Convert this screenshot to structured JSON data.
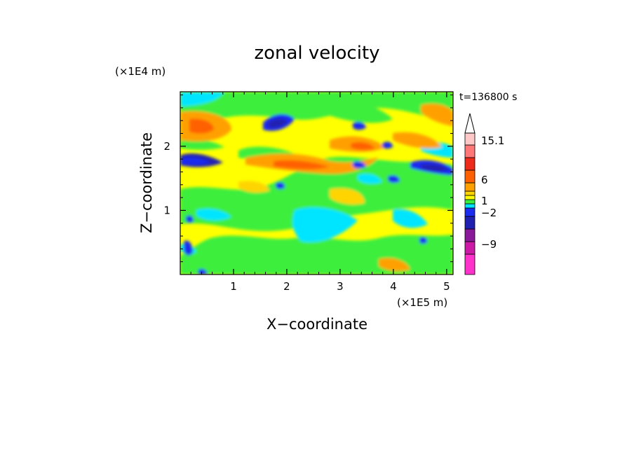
{
  "chart_data": {
    "type": "heatmap",
    "title": "zonal velocity",
    "xlabel": "X−coordinate",
    "ylabel": "Z−coordinate",
    "x_unit": "(×1E5 m)",
    "y_unit": "(×1E4 m)",
    "time_label": "t=136800 s",
    "xlim": [
      0,
      5.12
    ],
    "ylim": [
      0,
      2.85
    ],
    "x_ticks": [
      1,
      2,
      3,
      4,
      5
    ],
    "y_ticks": [
      1,
      2
    ],
    "colorbar": {
      "levels": [
        {
          "color": "#ff33cc"
        },
        {
          "color": "#cc1aa6"
        },
        {
          "color": "#8a1a9a"
        },
        {
          "color": "#2020b0"
        },
        {
          "color": "#1a2cf0"
        },
        {
          "color": "#00e5ff"
        },
        {
          "color": "#3cee3c"
        },
        {
          "color": "#ffff00"
        },
        {
          "color": "#ffd400"
        },
        {
          "color": "#ffa000"
        },
        {
          "color": "#ff6000"
        },
        {
          "color": "#ee2a1a"
        },
        {
          "color": "#ff7777"
        },
        {
          "color": "#ffc8c8"
        },
        {
          "color": "#ffffff"
        }
      ],
      "labels": [
        {
          "text": "−9",
          "value": -9
        },
        {
          "text": "−2",
          "value": -2
        },
        {
          "text": "1",
          "value": 1
        },
        {
          "text": "6",
          "value": 6
        },
        {
          "text": "15.1",
          "value": 15.1
        }
      ]
    },
    "features": [
      {
        "x": 0.35,
        "z": 1.85,
        "value": -6
      },
      {
        "x": 4.75,
        "z": 1.7,
        "value": -6
      },
      {
        "x": 1.9,
        "z": 2.3,
        "value": -5
      },
      {
        "x": 3.3,
        "z": 1.7,
        "value": -4
      },
      {
        "x": 3.55,
        "z": 1.4,
        "value": -4
      },
      {
        "x": 3.35,
        "z": 2.3,
        "value": -4
      },
      {
        "x": 0.3,
        "z": 2.25,
        "value": 4
      },
      {
        "x": 2.4,
        "z": 1.7,
        "value": 5
      },
      {
        "x": 3.45,
        "z": 2.0,
        "value": 4
      },
      {
        "x": 1.7,
        "z": 0.9,
        "value": 2
      },
      {
        "x": 3.6,
        "z": 0.2,
        "value": 2
      },
      {
        "x": 4.5,
        "z": 2.2,
        "value": 3
      },
      {
        "x": 0.15,
        "z": 2.7,
        "value": -2
      },
      {
        "x": 2.6,
        "z": 0.55,
        "value": -2
      },
      {
        "x": 4.85,
        "z": 1.4,
        "value": -2
      }
    ]
  }
}
